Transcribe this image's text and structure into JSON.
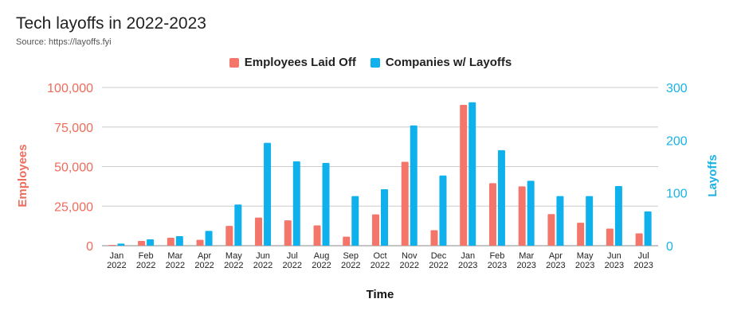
{
  "chart_data": {
    "type": "bar",
    "title": "Tech layoffs in 2022-2023",
    "subtitle": "Source: https://layoffs.fyi",
    "xlabel": "Time",
    "ylabel_left": "Employees",
    "ylabel_right": "Layoffs",
    "categories": [
      [
        "Jan",
        "2022"
      ],
      [
        "Feb",
        "2022"
      ],
      [
        "Mar",
        "2022"
      ],
      [
        "Apr",
        "2022"
      ],
      [
        "May",
        "2022"
      ],
      [
        "Jun",
        "2022"
      ],
      [
        "Jul",
        "2022"
      ],
      [
        "Aug",
        "2022"
      ],
      [
        "Sep",
        "2022"
      ],
      [
        "Oct",
        "2022"
      ],
      [
        "Nov",
        "2022"
      ],
      [
        "Dec",
        "2022"
      ],
      [
        "Jan",
        "2023"
      ],
      [
        "Feb",
        "2023"
      ],
      [
        "Mar",
        "2023"
      ],
      [
        "Apr",
        "2023"
      ],
      [
        "May",
        "2023"
      ],
      [
        "Jun",
        "2023"
      ],
      [
        "Jul",
        "2023"
      ]
    ],
    "y_left": {
      "min": 0,
      "max": 100000,
      "ticks": [
        "0",
        "25,000",
        "50,000",
        "75,000",
        "100,000"
      ]
    },
    "y_right": {
      "min": 0,
      "max": 300,
      "ticks": [
        "0",
        "100",
        "200",
        "300"
      ]
    },
    "grid": true,
    "legend_position": "top-center",
    "series": [
      {
        "name": "Employees Laid Off",
        "axis": "left",
        "color": "#f4766a",
        "values": [
          500,
          3000,
          5000,
          3700,
          12500,
          17800,
          16000,
          12800,
          5700,
          19800,
          53000,
          9800,
          89000,
          39500,
          37500,
          20000,
          14500,
          10800,
          7800
        ]
      },
      {
        "name": "Companies w/ Layoffs",
        "axis": "right",
        "color": "#0fb1ec",
        "values": [
          4,
          12,
          18,
          28,
          78,
          195,
          160,
          157,
          94,
          107,
          228,
          133,
          272,
          181,
          123,
          94,
          94,
          113,
          65
        ]
      }
    ]
  }
}
